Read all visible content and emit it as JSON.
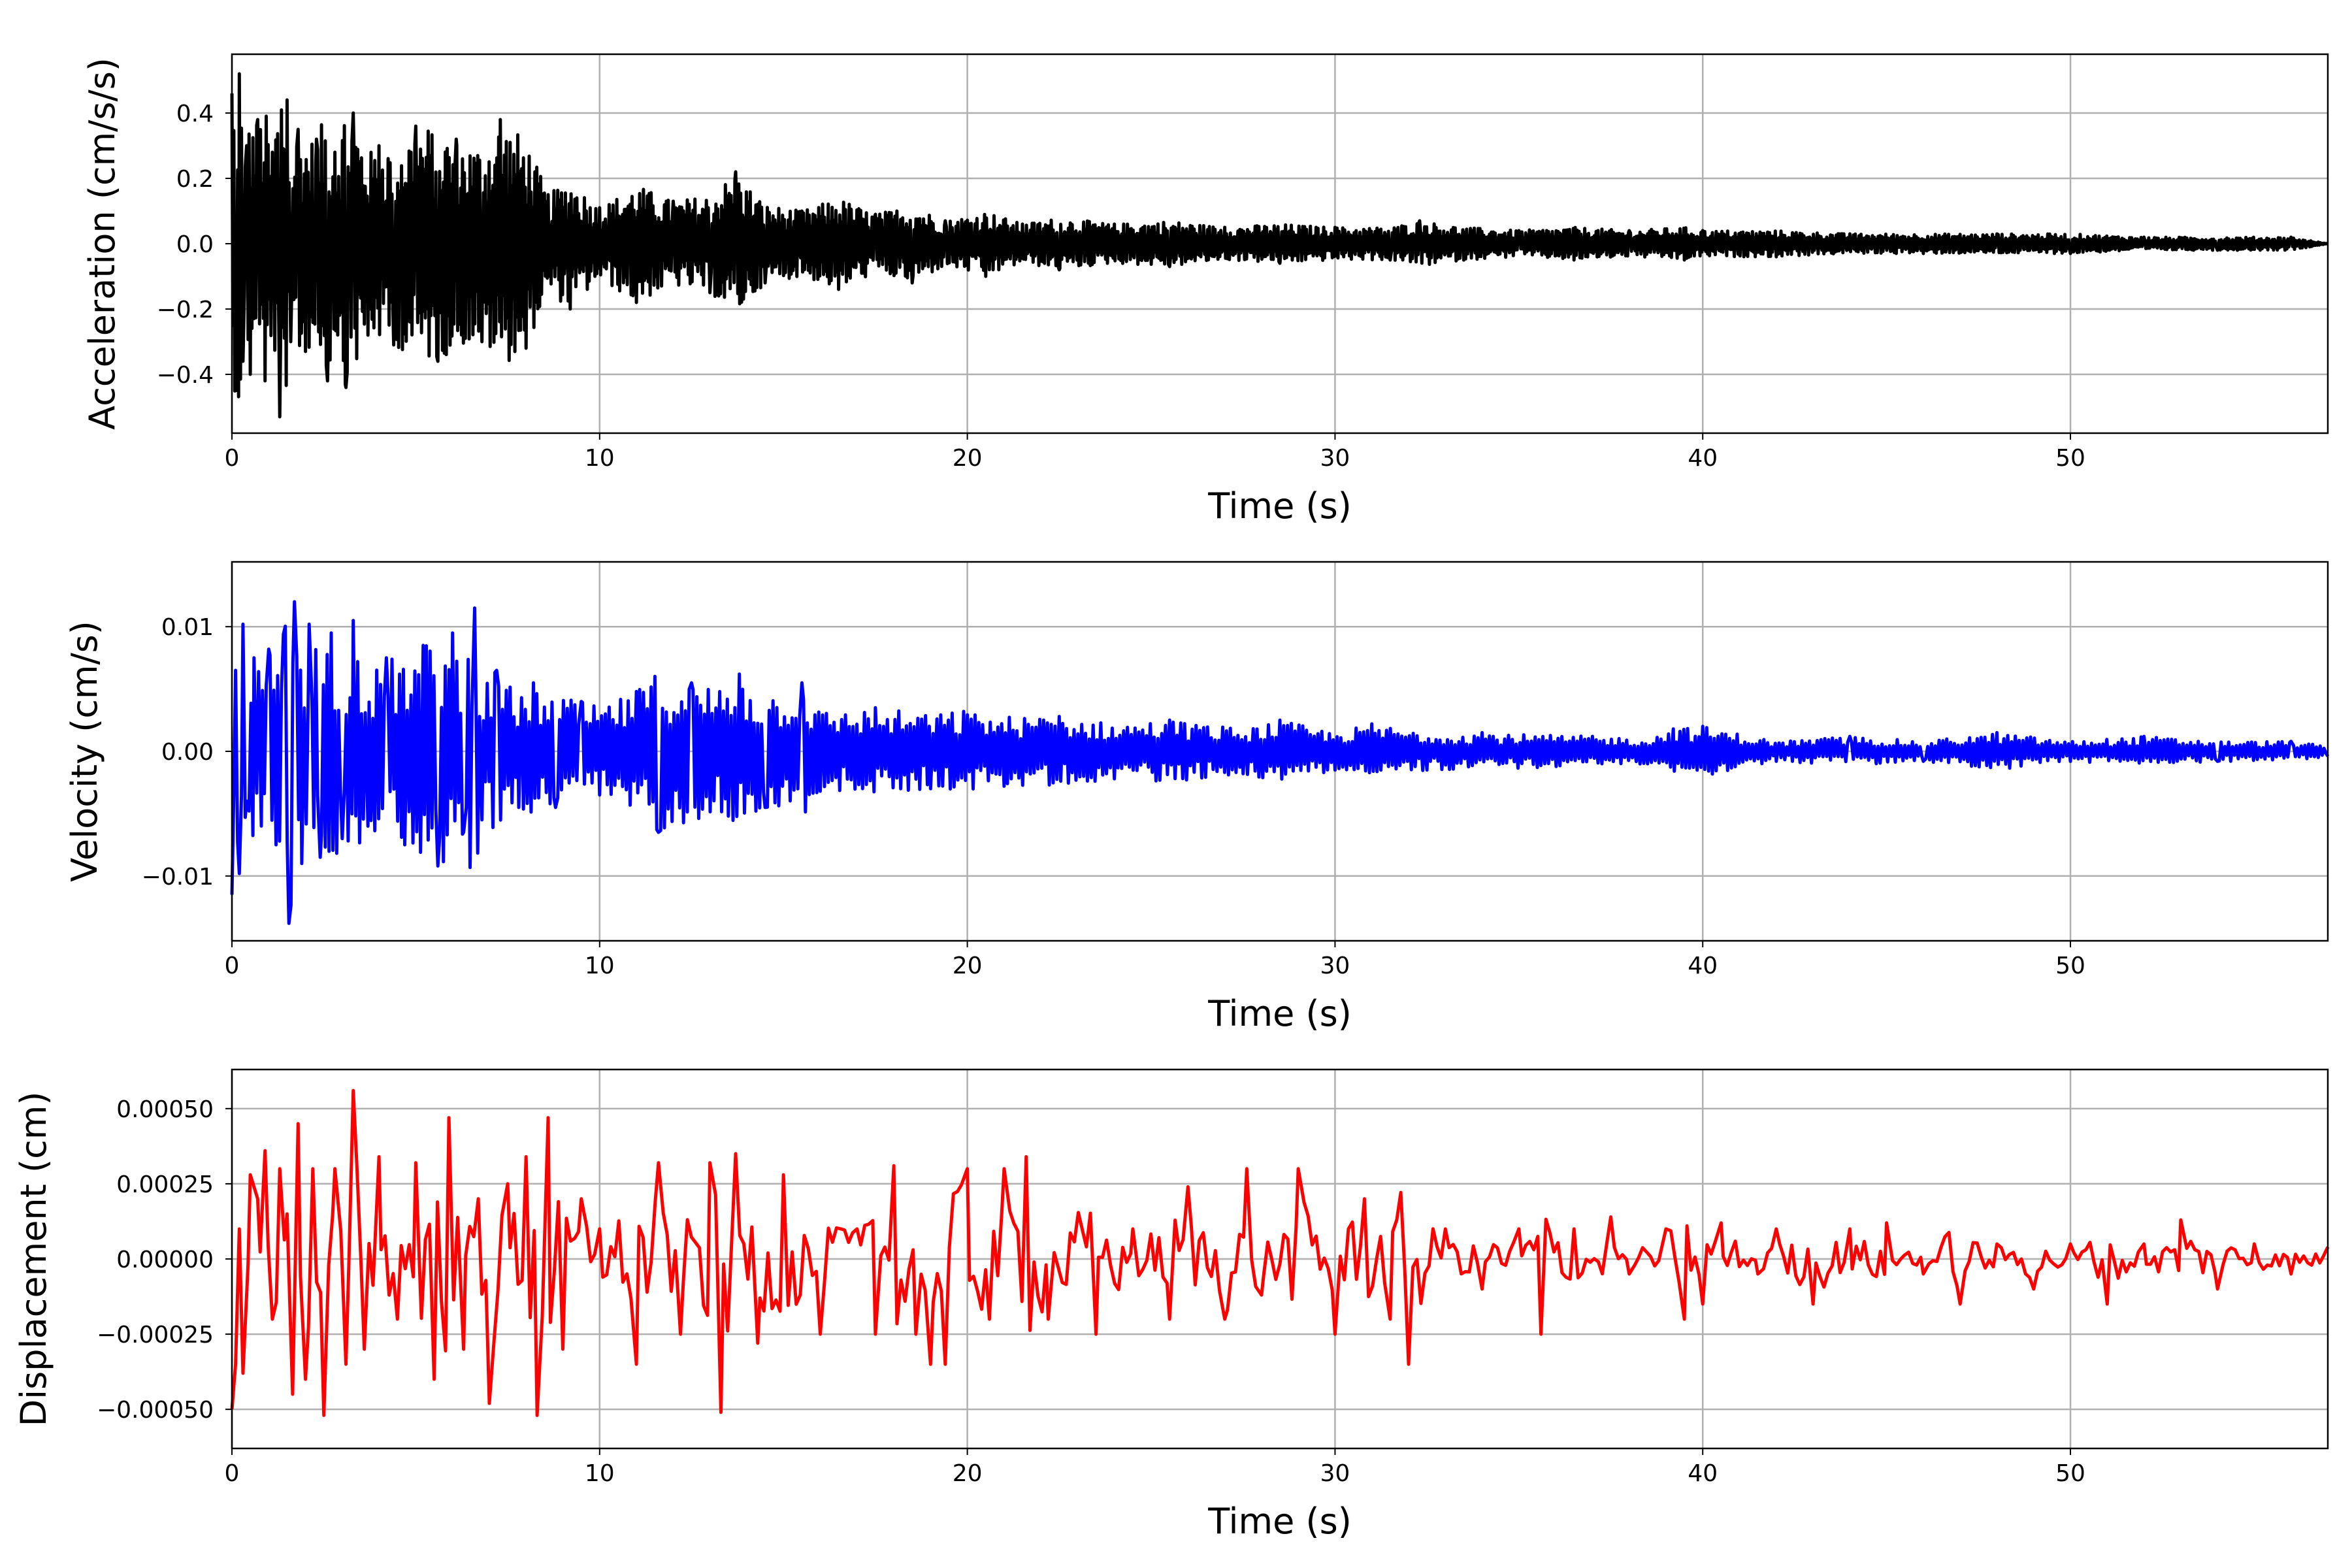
{
  "chart_data": [
    {
      "type": "line",
      "xlabel": "Time (s)",
      "ylabel": "Acceleration (cm/s/s)",
      "xlim": [
        0,
        57
      ],
      "ylim": [
        -0.58,
        0.58
      ],
      "xticks": [
        0,
        10,
        20,
        30,
        40,
        50
      ],
      "xtick_labels": [
        "0",
        "10",
        "20",
        "30",
        "40",
        "50"
      ],
      "yticks": [
        -0.4,
        -0.2,
        0.0,
        0.2,
        0.4
      ],
      "ytick_labels": [
        "−0.4",
        "−0.2",
        "0.0",
        "0.2",
        "0.4"
      ],
      "grid": true,
      "color": "#000000",
      "series": [
        {
          "style": "oscillatory decaying signal",
          "x": [
            0,
            0.1,
            0.2,
            0.3,
            0.4,
            0.5,
            0.7,
            0.9,
            1.1,
            1.3,
            1.5,
            1.6,
            1.8,
            2.0,
            2.3,
            2.6,
            2.8,
            3.1,
            3.3,
            3.7,
            4.0,
            4.4,
            5.0,
            5.6,
            6.1,
            6.8,
            7.3,
            8.0,
            8.6,
            9.2,
            10.0,
            11.0,
            12.0,
            13.0,
            13.7,
            14.5,
            15.5,
            16.5,
            17.5,
            18.5,
            19.4,
            20.5,
            21.5,
            22.5,
            24.0,
            25.5,
            27.0,
            28.5,
            30.0,
            31.5,
            32.3,
            33.5,
            35.0,
            36.5,
            38.0,
            39.5,
            40.0,
            42.0,
            44.0,
            46.0,
            48.0,
            50.0,
            52.0,
            54.0,
            56.0,
            57.0
          ],
          "y": [
            0.46,
            -0.45,
            0.52,
            -0.36,
            0.3,
            -0.4,
            0.38,
            -0.42,
            0.28,
            -0.53,
            0.44,
            -0.3,
            0.35,
            -0.33,
            0.32,
            -0.42,
            0.28,
            -0.44,
            0.4,
            -0.28,
            0.3,
            -0.31,
            0.36,
            -0.36,
            0.32,
            -0.3,
            0.38,
            -0.32,
            0.15,
            -0.2,
            0.11,
            -0.18,
            0.13,
            -0.15,
            0.22,
            -0.12,
            0.1,
            -0.14,
            0.09,
            -0.12,
            0.07,
            -0.1,
            0.06,
            -0.08,
            0.06,
            -0.07,
            0.05,
            -0.06,
            0.05,
            -0.05,
            0.07,
            -0.05,
            0.04,
            -0.05,
            0.04,
            -0.05,
            0.04,
            -0.04,
            0.03,
            -0.03,
            0.03,
            -0.03,
            0.02,
            -0.02,
            0.02,
            0.0
          ]
        }
      ]
    },
    {
      "type": "line",
      "xlabel": "Time (s)",
      "ylabel": "Velocity (cm/s)",
      "xlim": [
        0,
        57
      ],
      "ylim": [
        -0.0152,
        0.0152
      ],
      "xticks": [
        0,
        10,
        20,
        30,
        40,
        50
      ],
      "xtick_labels": [
        "0",
        "10",
        "20",
        "30",
        "40",
        "50"
      ],
      "yticks": [
        -0.01,
        0.0,
        0.01
      ],
      "ytick_labels": [
        "−0.01",
        "0.00",
        "0.01"
      ],
      "grid": true,
      "color": "#0000ff",
      "series": [
        {
          "style": "oscillatory decaying signal",
          "x": [
            0,
            0.1,
            0.2,
            0.3,
            0.4,
            0.6,
            0.8,
            1.0,
            1.2,
            1.4,
            1.55,
            1.7,
            1.9,
            2.1,
            2.4,
            2.7,
            3.0,
            3.3,
            3.7,
            4.2,
            4.7,
            5.2,
            5.6,
            6.0,
            6.3,
            6.6,
            6.8,
            7.2,
            7.8,
            8.2,
            8.8,
            9.5,
            10.0,
            11.0,
            11.6,
            12.5,
            13.5,
            13.8,
            14.5,
            15.5,
            16.0,
            17.5,
            19.0,
            19.9,
            21.0,
            22.5,
            24.0,
            25.5,
            27.5,
            28.5,
            30.0,
            31.0,
            32.5,
            34.0,
            35.5,
            37.0,
            38.5,
            39.2,
            40.0,
            42.0,
            44.0,
            46.0,
            48.0,
            50.0,
            52.0,
            54.0,
            56.0,
            57.0
          ],
          "y": [
            -0.0115,
            0.0065,
            -0.0098,
            0.0102,
            -0.004,
            0.0075,
            -0.006,
            0.0082,
            -0.0075,
            0.0094,
            -0.0138,
            0.012,
            -0.009,
            0.0102,
            -0.0085,
            0.0095,
            -0.007,
            0.0105,
            -0.006,
            0.0075,
            -0.0075,
            0.0085,
            -0.0092,
            0.0095,
            -0.0065,
            0.0115,
            -0.0055,
            0.0065,
            -0.0045,
            0.0055,
            -0.0045,
            0.004,
            -0.0035,
            0.0048,
            -0.0065,
            0.0055,
            -0.0052,
            0.0062,
            -0.0045,
            0.0055,
            -0.0032,
            0.0035,
            -0.003,
            0.0032,
            -0.0028,
            0.0028,
            -0.0022,
            0.0025,
            -0.0018,
            0.0025,
            -0.0015,
            0.0022,
            -0.0015,
            0.0015,
            -0.0013,
            0.0012,
            -0.001,
            0.0018,
            0.002,
            -0.0008,
            0.0012,
            -0.0008,
            0.0015,
            -0.0008,
            0.0012,
            -0.0008,
            0.0008,
            -0.0004
          ]
        }
      ]
    },
    {
      "type": "line",
      "xlabel": "Time (s)",
      "ylabel": "Displacement (cm)",
      "xlim": [
        0,
        57
      ],
      "ylim": [
        -0.00063,
        0.00063
      ],
      "xticks": [
        0,
        10,
        20,
        30,
        40,
        50
      ],
      "xtick_labels": [
        "0",
        "10",
        "20",
        "30",
        "40",
        "50"
      ],
      "yticks": [
        -0.0005,
        -0.00025,
        0.0,
        0.00025,
        0.0005
      ],
      "ytick_labels": [
        "−0.00050",
        "−0.00025",
        "0.00000",
        "0.00025",
        "0.00050"
      ],
      "grid": true,
      "color": "#ff0000",
      "series": [
        {
          "style": "oscillatory decaying signal",
          "x": [
            0,
            0.1,
            0.2,
            0.3,
            0.5,
            0.7,
            0.9,
            1.1,
            1.3,
            1.5,
            1.65,
            1.8,
            2.0,
            2.2,
            2.5,
            2.8,
            3.1,
            3.3,
            3.6,
            4.0,
            4.5,
            5.0,
            5.5,
            5.9,
            6.3,
            6.7,
            7.0,
            7.5,
            8.0,
            8.3,
            8.6,
            9.0,
            9.5,
            10.0,
            11.0,
            11.6,
            12.2,
            13.0,
            13.3,
            13.7,
            14.3,
            15.0,
            16.0,
            17.0,
            17.5,
            18.0,
            18.6,
            19.0,
            19.4,
            20.0,
            20.6,
            21.0,
            21.6,
            22.2,
            23.5,
            24.5,
            25.5,
            26.0,
            27.0,
            27.6,
            28.0,
            29.0,
            30.0,
            30.8,
            31.5,
            32.0,
            33.0,
            34.0,
            35.0,
            35.6,
            36.5,
            37.5,
            38.0,
            39.0,
            39.5,
            40.0,
            40.5,
            41.5,
            42.0,
            43.0,
            44.0,
            45.0,
            46.0,
            47.0,
            48.0,
            49.0,
            50.0,
            51.0,
            52.0,
            53.0,
            54.0,
            55.0,
            56.0,
            57.0
          ],
          "y": [
            -0.0005,
            -0.00035,
            0.0001,
            -0.00038,
            0.00028,
            0.0002,
            0.00036,
            -0.0002,
            0.0003,
            0.00015,
            -0.00045,
            0.00045,
            -0.0004,
            0.0003,
            -0.00052,
            0.0003,
            -0.00035,
            0.00056,
            -0.0003,
            0.00034,
            -0.0002,
            0.00032,
            -0.0004,
            0.00047,
            -0.0003,
            0.0002,
            -0.00048,
            0.00025,
            0.00034,
            -0.00052,
            0.00047,
            -0.0003,
            0.0002,
            0.0001,
            -0.00035,
            0.00032,
            -0.00025,
            0.00032,
            -0.00051,
            0.00035,
            -0.00028,
            0.00028,
            -0.00025,
            0.0001,
            -0.00025,
            0.00031,
            -0.00025,
            -0.00035,
            -0.00035,
            0.0003,
            -0.0002,
            0.0003,
            0.00034,
            -0.0002,
            -0.00025,
            0.0001,
            -0.0002,
            0.00024,
            -0.0002,
            0.0003,
            -0.00012,
            0.0003,
            -0.00025,
            0.0002,
            -0.0002,
            -0.00035,
            0.0001,
            -0.0001,
            0.0001,
            -0.00025,
            0.0001,
            0.00014,
            -5e-05,
            0.0001,
            -0.0002,
            -0.00015,
            0.00012,
            -5e-05,
            0.0001,
            -0.00015,
            0.0001,
            0.00012,
            -5e-05,
            -0.00015,
            5e-05,
            -0.0001,
            5e-05,
            -0.00015,
            5e-05,
            0.00013,
            -0.0001,
            5e-05,
            -5e-05,
            4e-05
          ]
        }
      ]
    }
  ]
}
